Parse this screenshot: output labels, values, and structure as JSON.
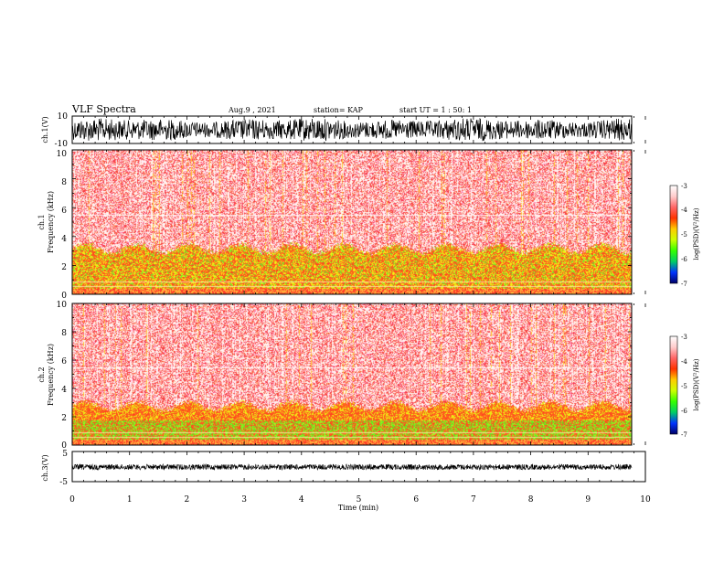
{
  "header": {
    "title": "VLF Spectra",
    "date": "Aug.9  , 2021",
    "station": "station= KAP",
    "start": "start  UT  =   1 : 50: 1"
  },
  "chart_data": [
    {
      "type": "line",
      "panel": "waveform-ch1",
      "ylabel": "ch.1(V)",
      "ylim": [
        -10,
        10
      ],
      "yticks": [
        "10",
        "-10"
      ],
      "xlim": [
        0,
        10
      ]
    },
    {
      "type": "heatmap",
      "panel": "spectrogram-ch1",
      "ylabel_top": "ch.1",
      "ylabel": "Frequency (kHz)",
      "ylim": [
        0,
        10
      ],
      "yticks": [
        "10",
        "8",
        "6",
        "4",
        "2",
        "0"
      ],
      "xlim": [
        0,
        9.85
      ],
      "colorbar": {
        "label": "log(PSD)(V²/Hz)",
        "range": [
          -7,
          -3
        ],
        "ticks": [
          "-3",
          "-4",
          "-5",
          "-6",
          "-7"
        ],
        "colors": [
          "#000066",
          "#0033ff",
          "#00cc66",
          "#33ff00",
          "#ccff00",
          "#ffcc00",
          "#ff3300",
          "#ff6666",
          "#ffcccc",
          "#ffffff"
        ]
      }
    },
    {
      "type": "heatmap",
      "panel": "spectrogram-ch2",
      "ylabel_top": "ch.2",
      "ylabel": "Frequency (kHz)",
      "ylim": [
        0,
        10
      ],
      "yticks": [
        "10",
        "8",
        "6",
        "4",
        "2",
        "0"
      ],
      "xlim": [
        0,
        9.85
      ],
      "colorbar": {
        "label": "log(PSD)(V²/Hz)",
        "range": [
          -7,
          -3
        ],
        "ticks": [
          "-3",
          "-4",
          "-5",
          "-6",
          "-7"
        ],
        "colors": [
          "#000066",
          "#0033ff",
          "#00cc66",
          "#33ff00",
          "#ccff00",
          "#ffcc00",
          "#ff3300",
          "#ff6666",
          "#ffcccc",
          "#ffffff"
        ]
      }
    },
    {
      "type": "line",
      "panel": "waveform-ch3",
      "ylabel": "ch.3(V)",
      "ylim": [
        -5,
        5
      ],
      "yticks": [
        "5",
        "-5"
      ],
      "xlim": [
        0,
        10
      ]
    }
  ],
  "xaxis": {
    "label": "Time (min)",
    "ticks": [
      "0",
      "1",
      "2",
      "3",
      "4",
      "5",
      "6",
      "7",
      "8",
      "9",
      "10"
    ]
  }
}
